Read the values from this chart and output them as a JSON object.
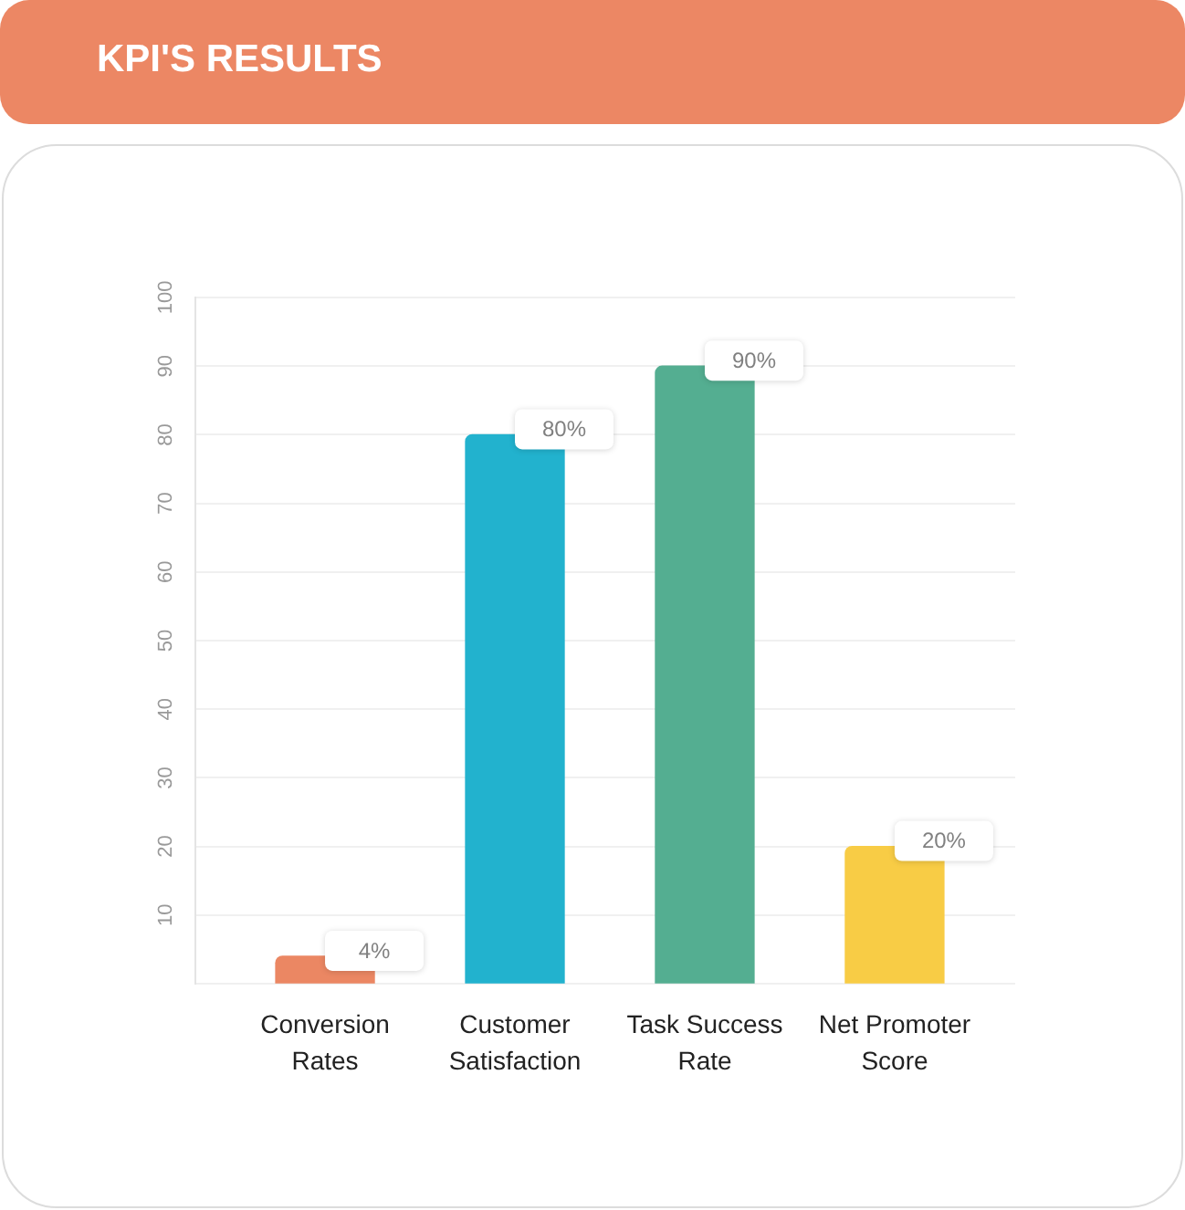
{
  "chart_data": {
    "type": "bar",
    "title": "KPI'S RESULTS",
    "categories": [
      "Conversion Rates",
      "Customer Satisfaction",
      "Task Success Rate",
      "Net Promoter Score"
    ],
    "values": [
      4,
      80,
      90,
      20
    ],
    "colors": [
      "#eb8763",
      "#22b2ce",
      "#54ae91",
      "#f8cc45"
    ],
    "value_labels": [
      "4%",
      "80%",
      "90%",
      "20%"
    ],
    "ylim": [
      0,
      100
    ],
    "yticks": [
      {
        "value": 0,
        "label": null
      },
      10,
      20,
      30,
      40,
      50,
      60,
      70,
      80,
      90,
      100
    ],
    "grid": "y",
    "legend": false
  }
}
